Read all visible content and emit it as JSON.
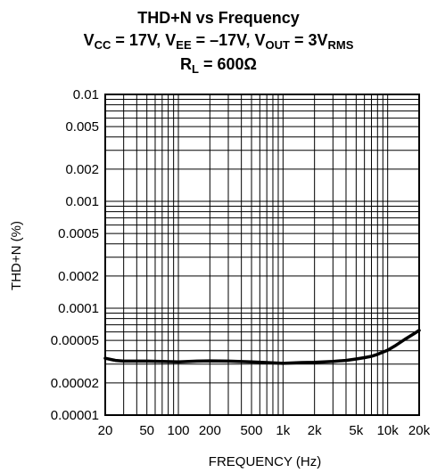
{
  "chart_data": {
    "type": "line",
    "title": "THD+N vs Frequency",
    "subtitle_parts": [
      {
        "base": "V",
        "sub": "CC"
      },
      {
        "text": " = 17V, "
      },
      {
        "base": "V",
        "sub": "EE"
      },
      {
        "text": " = –17V, "
      },
      {
        "base": "V",
        "sub": "OUT"
      },
      {
        "text": " = 3V"
      },
      {
        "subonly": "RMS"
      }
    ],
    "subtitle2_parts": [
      {
        "base": "R",
        "sub": "L"
      },
      {
        "text": " = 600Ω"
      }
    ],
    "xlabel": "FREQUENCY (Hz)",
    "ylabel": "THD+N (%)",
    "x_scale": "log",
    "y_scale": "log",
    "xlim": [
      20,
      20000
    ],
    "ylim": [
      1e-05,
      0.01
    ],
    "grid": true,
    "x_ticks": [
      {
        "value": 20,
        "label": "20"
      },
      {
        "value": 50,
        "label": "50"
      },
      {
        "value": 100,
        "label": "100"
      },
      {
        "value": 200,
        "label": "200"
      },
      {
        "value": 500,
        "label": "500"
      },
      {
        "value": 1000,
        "label": "1k"
      },
      {
        "value": 2000,
        "label": "2k"
      },
      {
        "value": 5000,
        "label": "5k"
      },
      {
        "value": 10000,
        "label": "10k"
      },
      {
        "value": 20000,
        "label": "20k"
      }
    ],
    "y_ticks": [
      {
        "value": 1e-05,
        "label": "0.00001"
      },
      {
        "value": 2e-05,
        "label": "0.00002"
      },
      {
        "value": 5e-05,
        "label": "0.00005"
      },
      {
        "value": 0.0001,
        "label": "0.0001"
      },
      {
        "value": 0.0002,
        "label": "0.0002"
      },
      {
        "value": 0.0005,
        "label": "0.0005"
      },
      {
        "value": 0.001,
        "label": "0.001"
      },
      {
        "value": 0.002,
        "label": "0.002"
      },
      {
        "value": 0.005,
        "label": "0.005"
      },
      {
        "value": 0.01,
        "label": "0.01"
      }
    ],
    "series": [
      {
        "x": [
          20,
          25,
          30,
          40,
          50,
          70,
          100,
          150,
          200,
          300,
          500,
          700,
          1000,
          1500,
          2000,
          3000,
          4000,
          5000,
          6000,
          7000,
          8000,
          10000,
          12000,
          15000,
          18000,
          20000
        ],
        "y": [
          3.4e-05,
          3.25e-05,
          3.2e-05,
          3.2e-05,
          3.2e-05,
          3.18e-05,
          3.15e-05,
          3.2e-05,
          3.22e-05,
          3.2e-05,
          3.15e-05,
          3.1e-05,
          3.05e-05,
          3.1e-05,
          3.12e-05,
          3.18e-05,
          3.25e-05,
          3.35e-05,
          3.45e-05,
          3.55e-05,
          3.7e-05,
          4.05e-05,
          4.5e-05,
          5.2e-05,
          5.8e-05,
          6.2e-05
        ]
      }
    ],
    "colors": {
      "line": "#000000",
      "grid": "#000000",
      "background": "#ffffff"
    }
  }
}
